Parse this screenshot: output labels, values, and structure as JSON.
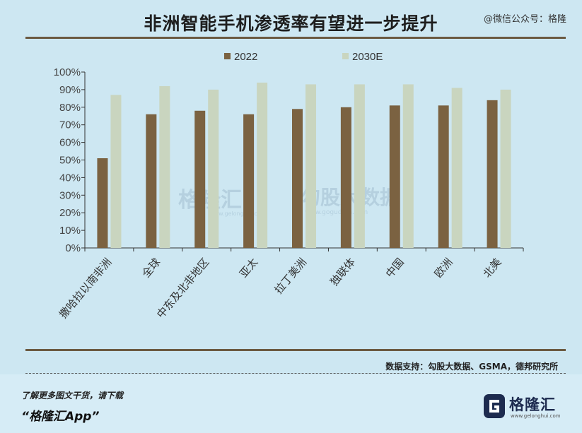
{
  "title": "非洲智能手机渗透率有望进一步提升",
  "wechat": "@微信公众号：格隆",
  "source": "数据支持：勾股大数据、GSMA，德邦研究所",
  "footer": {
    "promo_line1": "了解更多图文干货，请下载",
    "promo_line2": "“格隆汇App”",
    "logo_text": "格隆汇",
    "logo_sub": "www.gelonghui.com"
  },
  "watermark": {
    "left_text": "格隆汇",
    "left_sub": "www.gelonghui.com",
    "right_text": "勾股大数据",
    "right_sub": "www.gogudata.com"
  },
  "colors": {
    "series_2022": "#7b6241",
    "series_2030E": "#c9d5bf",
    "axis": "#333333"
  },
  "chart_data": {
    "type": "bar",
    "categories": [
      "撒哈拉以南非洲",
      "全球",
      "中东及北非地区",
      "亚太",
      "拉丁美洲",
      "独联体",
      "中国",
      "欧洲",
      "北美"
    ],
    "series": [
      {
        "name": "2022",
        "values": [
          51,
          76,
          78,
          76,
          79,
          80,
          81,
          81,
          84
        ]
      },
      {
        "name": "2030E",
        "values": [
          87,
          92,
          90,
          94,
          93,
          93,
          93,
          91,
          90
        ]
      }
    ],
    "yticks": [
      "0%",
      "10%",
      "20%",
      "30%",
      "40%",
      "50%",
      "60%",
      "70%",
      "80%",
      "90%",
      "100%"
    ],
    "ylim": [
      0,
      100
    ],
    "legend_position": "top",
    "grid": false
  }
}
